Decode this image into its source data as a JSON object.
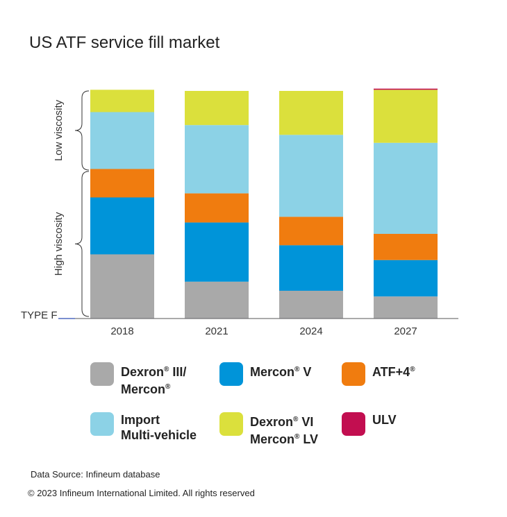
{
  "title": "US ATF service fill market",
  "chart_data": {
    "type": "bar",
    "stacked": true,
    "categories": [
      "2018",
      "2021",
      "2024",
      "2027"
    ],
    "ylim": [
      0,
      100
    ],
    "series": [
      {
        "name": "TYPE F",
        "values": [
          0.2,
          0.2,
          0.2,
          0.2
        ],
        "color": "#7b8fd0"
      },
      {
        "name": "Dexron® III/ Mercon®",
        "values": [
          28,
          16,
          12,
          9.5
        ],
        "color": "#a9a9a9"
      },
      {
        "name": "Mercon® V",
        "values": [
          25,
          26,
          20,
          16
        ],
        "color": "#0094d9"
      },
      {
        "name": "ATF+4®",
        "values": [
          12.5,
          12.8,
          12.5,
          11.5
        ],
        "color": "#f07c0f"
      },
      {
        "name": "Import Multi-vehicle",
        "values": [
          25,
          30,
          36,
          40
        ],
        "color": "#8cd2e6"
      },
      {
        "name": "Dexron® VI Mercon® LV",
        "values": [
          9.8,
          15,
          19.3,
          23.3
        ],
        "color": "#dbe03c"
      },
      {
        "name": "ULV",
        "values": [
          0,
          0,
          0,
          0.5
        ],
        "color": "#c20e50"
      }
    ],
    "brace_labels": [
      "Low viscosity",
      "High viscosity"
    ],
    "baseline_label": "TYPE F"
  },
  "legend": [
    {
      "line1": "Dexron",
      "sup1": "®",
      "line1b": " III/",
      "line2": "Mercon",
      "sup2": "®",
      "color": "#a9a9a9"
    },
    {
      "line1": "Mercon",
      "sup1": "®",
      "line1b": " V",
      "line2": "",
      "sup2": "",
      "color": "#0094d9"
    },
    {
      "line1": "ATF+4",
      "sup1": "®",
      "line1b": "",
      "line2": "",
      "sup2": "",
      "color": "#f07c0f"
    },
    {
      "line1": "Import",
      "sup1": "",
      "line1b": "",
      "line2": "Multi-vehicle",
      "sup2": "",
      "color": "#8cd2e6"
    },
    {
      "line1": "Dexron",
      "sup1": "®",
      "line1b": " VI",
      "line2": "Mercon",
      "sup2": "®",
      "line2b": " LV",
      "color": "#dbe03c"
    },
    {
      "line1": "ULV",
      "sup1": "",
      "line1b": "",
      "line2": "",
      "sup2": "",
      "color": "#c20e50"
    }
  ],
  "source": "Data Source: Infineum database",
  "copyright": "© 2023 Infineum International Limited. All rights reserved"
}
